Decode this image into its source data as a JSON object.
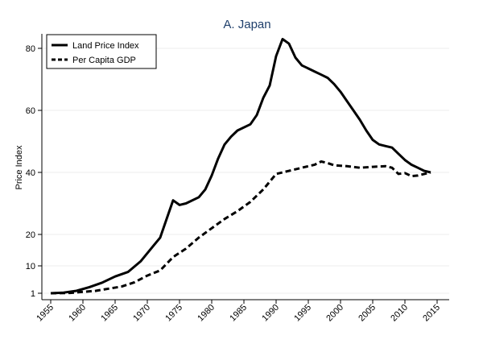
{
  "chart_data": {
    "type": "line",
    "title": "A. Japan",
    "xlabel": "",
    "ylabel": "Price Index",
    "x_ticks": [
      1955,
      1960,
      1965,
      1970,
      1975,
      1980,
      1985,
      1990,
      1995,
      2000,
      2005,
      2010,
      2015
    ],
    "y_ticks": [
      1,
      10,
      20,
      40,
      60,
      80
    ],
    "xlim": [
      1955,
      2016
    ],
    "legend_position": "top-left",
    "grid": false,
    "series": [
      {
        "name": "Land Price Index",
        "style": "solid",
        "color": "#000000",
        "points": [
          [
            1955,
            1
          ],
          [
            1957,
            1.2
          ],
          [
            1959,
            1.8
          ],
          [
            1961,
            3
          ],
          [
            1963,
            4.5
          ],
          [
            1965,
            6.5
          ],
          [
            1967,
            8
          ],
          [
            1969,
            11.5
          ],
          [
            1971,
            16.5
          ],
          [
            1972,
            19
          ],
          [
            1973,
            25
          ],
          [
            1974,
            31
          ],
          [
            1975,
            29.5
          ],
          [
            1976,
            30
          ],
          [
            1978,
            32
          ],
          [
            1979,
            34.5
          ],
          [
            1980,
            39
          ],
          [
            1981,
            44.5
          ],
          [
            1982,
            49
          ],
          [
            1983,
            51.5
          ],
          [
            1984,
            53.5
          ],
          [
            1986,
            55.5
          ],
          [
            1987,
            58.5
          ],
          [
            1988,
            64
          ],
          [
            1989,
            68
          ],
          [
            1990,
            77.5
          ],
          [
            1991,
            83
          ],
          [
            1992,
            81.5
          ],
          [
            1993,
            77
          ],
          [
            1994,
            74.5
          ],
          [
            1995,
            73.5
          ],
          [
            1996,
            72.5
          ],
          [
            1997,
            71.5
          ],
          [
            1998,
            70.5
          ],
          [
            1999,
            68.5
          ],
          [
            2000,
            66
          ],
          [
            2001,
            63
          ],
          [
            2002,
            60
          ],
          [
            2003,
            57
          ],
          [
            2004,
            53.5
          ],
          [
            2005,
            50.5
          ],
          [
            2006,
            49
          ],
          [
            2007,
            48.5
          ],
          [
            2008,
            48
          ],
          [
            2009,
            46
          ],
          [
            2010,
            44
          ],
          [
            2011,
            42.5
          ],
          [
            2012,
            41.5
          ],
          [
            2013,
            40.5
          ],
          [
            2014,
            40
          ]
        ]
      },
      {
        "name": "Per Capita GDP",
        "style": "dashed",
        "color": "#000000",
        "points": [
          [
            1955,
            1
          ],
          [
            1958,
            1.1
          ],
          [
            1962,
            1.8
          ],
          [
            1964,
            2.5
          ],
          [
            1966,
            3.2
          ],
          [
            1968,
            4.6
          ],
          [
            1970,
            6.8
          ],
          [
            1972,
            8.5
          ],
          [
            1974,
            12.8
          ],
          [
            1976,
            15.5
          ],
          [
            1978,
            19
          ],
          [
            1980,
            22
          ],
          [
            1982,
            25
          ],
          [
            1984,
            27.5
          ],
          [
            1986,
            30.5
          ],
          [
            1988,
            34.5
          ],
          [
            1990,
            39.5
          ],
          [
            1992,
            40.5
          ],
          [
            1994,
            41.5
          ],
          [
            1996,
            42.5
          ],
          [
            1997,
            43.5
          ],
          [
            1998,
            43
          ],
          [
            1999,
            42.3
          ],
          [
            2001,
            42
          ],
          [
            2003,
            41.5
          ],
          [
            2005,
            41.8
          ],
          [
            2007,
            42
          ],
          [
            2008,
            41.5
          ],
          [
            2009,
            39.5
          ],
          [
            2010,
            39.8
          ],
          [
            2011,
            38.8
          ],
          [
            2012,
            39
          ],
          [
            2014,
            40
          ]
        ]
      }
    ]
  }
}
